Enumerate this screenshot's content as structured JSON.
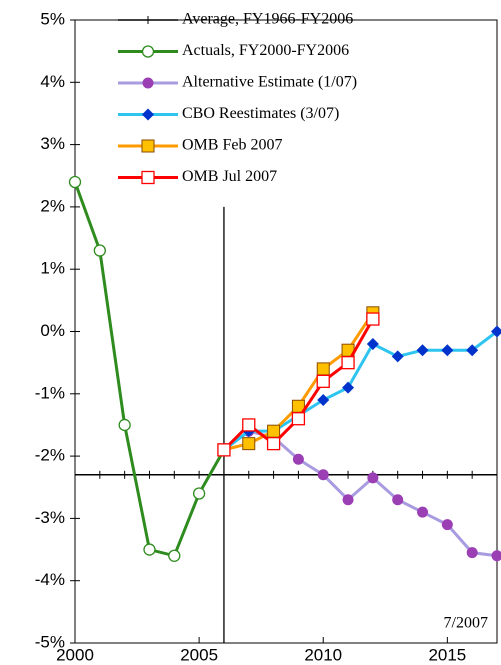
{
  "chart_data": {
    "type": "line",
    "xlim": [
      2000,
      2017
    ],
    "xticks": [
      2000,
      2005,
      2010,
      2015
    ],
    "ylim": [
      -5,
      5
    ],
    "yticks": [
      {
        "value": 5,
        "label": "5%"
      },
      {
        "value": 4,
        "label": "4%"
      },
      {
        "value": 3,
        "label": "3%"
      },
      {
        "value": 2,
        "label": "2%"
      },
      {
        "value": 1,
        "label": "1%"
      },
      {
        "value": 0,
        "label": "0%"
      },
      {
        "value": -1,
        "label": "-1%"
      },
      {
        "value": -2,
        "label": "-2%"
      },
      {
        "value": -3,
        "label": "-3%"
      },
      {
        "value": -4,
        "label": "-4%"
      },
      {
        "value": -5,
        "label": "-5%"
      }
    ],
    "vline_x": 2006,
    "annotation": "7/2007",
    "series": [
      {
        "name": "Average, FY1966-FY2006",
        "color": "#000000",
        "marker": "tick",
        "x": [
          2000,
          2001,
          2002,
          2003,
          2004,
          2005,
          2006,
          2007,
          2008,
          2009,
          2010,
          2011,
          2012,
          2013,
          2014,
          2015,
          2016,
          2017
        ],
        "values": [
          -2.3,
          -2.3,
          -2.3,
          -2.3,
          -2.3,
          -2.3,
          -2.3,
          -2.3,
          -2.3,
          -2.3,
          -2.3,
          -2.3,
          -2.3,
          -2.3,
          -2.3,
          -2.3,
          -2.3,
          -2.3
        ]
      },
      {
        "name": "Actuals, FY2000-FY2006",
        "color": "#2e8b1e",
        "marker": "open-circle",
        "x": [
          2000,
          2001,
          2002,
          2003,
          2004,
          2005,
          2006
        ],
        "values": [
          2.4,
          1.3,
          -1.5,
          -3.5,
          -3.6,
          -2.6,
          -1.9
        ]
      },
      {
        "name": "Alternative Estimate (1/07)",
        "color": "#a99be0",
        "marker": "filled-circle",
        "marker_color": "#9b3fb5",
        "x": [
          2006,
          2007,
          2008,
          2009,
          2010,
          2011,
          2012,
          2013,
          2014,
          2015,
          2016,
          2017
        ],
        "values": [
          -1.9,
          -1.6,
          -1.7,
          -2.05,
          -2.3,
          -2.7,
          -2.35,
          -2.7,
          -2.9,
          -3.1,
          -3.55,
          -3.6
        ]
      },
      {
        "name": "CBO Reestimates (3/07)",
        "color": "#2ec4f0",
        "marker": "diamond",
        "marker_color": "#0033cc",
        "x": [
          2006,
          2007,
          2008,
          2009,
          2010,
          2011,
          2012,
          2013,
          2014,
          2015,
          2016,
          2017
        ],
        "values": [
          -1.9,
          -1.6,
          -1.6,
          -1.35,
          -1.1,
          -0.9,
          -0.2,
          -0.4,
          -0.3,
          -0.3,
          -0.3,
          0.0
        ]
      },
      {
        "name": "OMB Feb 2007",
        "color": "#ff9a00",
        "marker": "filled-square",
        "marker_color": "#ffc000",
        "x": [
          2006,
          2007,
          2008,
          2009,
          2010,
          2011,
          2012
        ],
        "values": [
          -1.9,
          -1.8,
          -1.6,
          -1.2,
          -0.6,
          -0.3,
          0.3
        ]
      },
      {
        "name": "OMB Jul 2007",
        "color": "#ff0000",
        "marker": "open-square",
        "x": [
          2006,
          2007,
          2008,
          2009,
          2010,
          2011,
          2012
        ],
        "values": [
          -1.9,
          -1.5,
          -1.8,
          -1.4,
          -0.8,
          -0.5,
          0.2
        ]
      }
    ]
  }
}
